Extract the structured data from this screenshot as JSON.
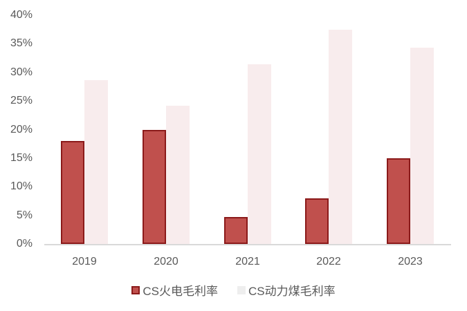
{
  "chart_data": {
    "type": "bar",
    "title": "",
    "xlabel": "",
    "ylabel": "",
    "categories": [
      "2019",
      "2020",
      "2021",
      "2022",
      "2023"
    ],
    "series": [
      {
        "name": "CS火电毛利率",
        "values": [
          18.0,
          20.0,
          4.7,
          8.0,
          15.0
        ],
        "color": "#c0504d",
        "border": "#8b1a1a"
      },
      {
        "name": "CS动力煤毛利率",
        "values": [
          28.6,
          24.2,
          31.4,
          37.5,
          34.3
        ],
        "color": "#f8eced",
        "border": ""
      }
    ],
    "yticks": [
      "0%",
      "5%",
      "10%",
      "15%",
      "20%",
      "25%",
      "30%",
      "35%",
      "40%"
    ],
    "ylim": [
      0,
      40
    ],
    "grid": false,
    "legend_position": "bottom"
  }
}
